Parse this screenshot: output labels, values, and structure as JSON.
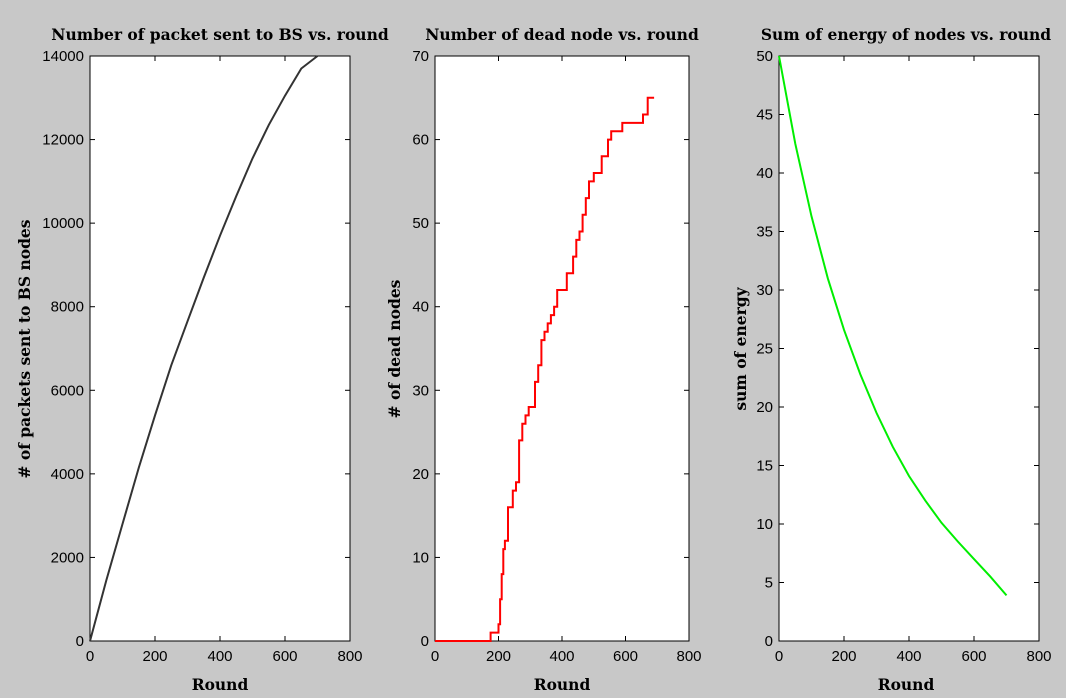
{
  "figure": {
    "caption": ""
  },
  "chart_data": [
    {
      "type": "line",
      "title": "Number of packet sent to BS vs. round",
      "xlabel": "Round",
      "ylabel": "# of packets sent to BS nodes",
      "xlim": [
        0,
        800
      ],
      "ylim": [
        0,
        14000
      ],
      "xticks": [
        0,
        200,
        400,
        600,
        800
      ],
      "yticks": [
        0,
        2000,
        4000,
        6000,
        8000,
        10000,
        12000,
        14000
      ],
      "grid": false,
      "step": false,
      "series": [
        {
          "color": "#333333",
          "x": [
            0,
            50,
            100,
            150,
            200,
            250,
            300,
            350,
            400,
            450,
            500,
            550,
            600,
            650,
            700
          ],
          "y": [
            0,
            1450,
            2800,
            4150,
            5400,
            6600,
            7650,
            8700,
            9700,
            10650,
            11550,
            12350,
            13050,
            13700,
            14000
          ]
        }
      ]
    },
    {
      "type": "line",
      "title": "Number of dead node vs. round",
      "xlabel": "Round",
      "ylabel": "# of dead nodes",
      "xlim": [
        0,
        800
      ],
      "ylim": [
        0,
        70
      ],
      "xticks": [
        0,
        200,
        400,
        600,
        800
      ],
      "yticks": [
        0,
        10,
        20,
        30,
        40,
        50,
        60,
        70
      ],
      "grid": false,
      "step": true,
      "series": [
        {
          "color": "#ff0000",
          "x": [
            0,
            175,
            200,
            205,
            210,
            215,
            220,
            230,
            245,
            255,
            265,
            275,
            285,
            295,
            300,
            315,
            325,
            335,
            345,
            355,
            365,
            375,
            385,
            395,
            415,
            435,
            445,
            455,
            465,
            475,
            485,
            490,
            500,
            510,
            525,
            545,
            555,
            570,
            590,
            610,
            655,
            670,
            690
          ],
          "y": [
            0,
            1,
            2,
            5,
            8,
            11,
            12,
            16,
            18,
            19,
            24,
            26,
            27,
            28,
            28,
            31,
            33,
            36,
            37,
            38,
            39,
            40,
            42,
            42,
            44,
            46,
            48,
            49,
            51,
            53,
            55,
            55,
            56,
            56,
            58,
            60,
            61,
            61,
            62,
            62,
            63,
            65,
            65
          ]
        }
      ]
    },
    {
      "type": "line",
      "title": "Sum of energy of nodes vs. round",
      "xlabel": "Round",
      "ylabel": "sum of energy",
      "xlim": [
        0,
        800
      ],
      "ylim": [
        0,
        50
      ],
      "xticks": [
        0,
        200,
        400,
        600,
        800
      ],
      "yticks": [
        0,
        5,
        10,
        15,
        20,
        25,
        30,
        35,
        40,
        45,
        50
      ],
      "grid": false,
      "step": false,
      "series": [
        {
          "color": "#00ee00",
          "x": [
            0,
            50,
            100,
            150,
            200,
            250,
            300,
            350,
            400,
            450,
            500,
            550,
            600,
            650,
            700
          ],
          "y": [
            50,
            42.5,
            36.3,
            31,
            26.6,
            22.8,
            19.5,
            16.6,
            14.1,
            12,
            10.1,
            8.5,
            7,
            5.5,
            3.9
          ]
        }
      ]
    }
  ]
}
